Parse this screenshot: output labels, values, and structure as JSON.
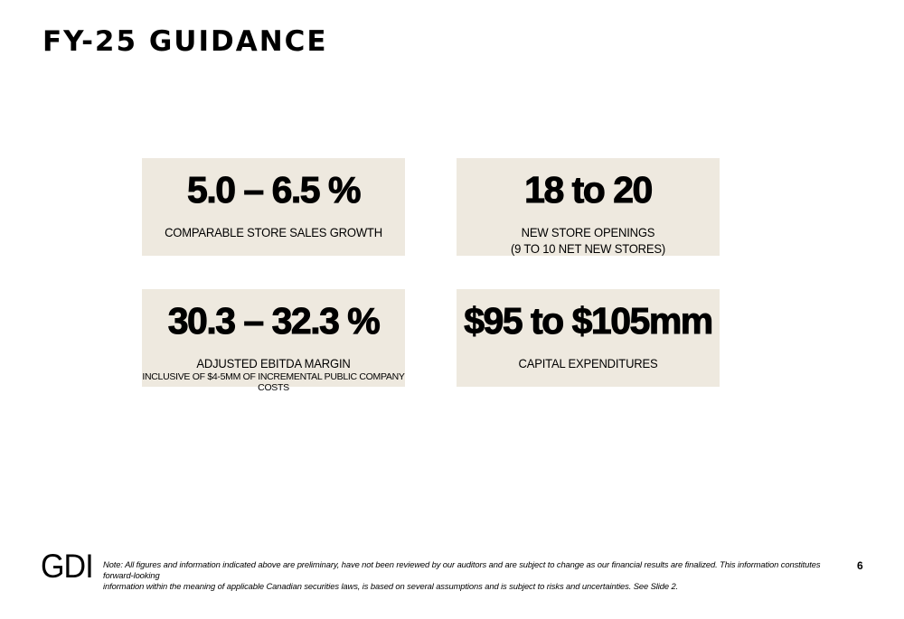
{
  "page": {
    "title": "FY-25 GUIDANCE",
    "page_number": "6"
  },
  "cards": [
    {
      "metric": "5.0 – 6.5 %",
      "label": "COMPARABLE STORE SALES GROWTH"
    },
    {
      "metric": "18 to 20",
      "label": "NEW STORE OPENINGS",
      "sublabel": "(9 TO 10 NET NEW STORES)"
    },
    {
      "metric": "30.3 – 32.3 %",
      "label": "ADJUSTED EBITDA MARGIN",
      "sublabel": "INCLUSIVE OF $4-5MM OF INCREMENTAL PUBLIC COMPANY COSTS"
    },
    {
      "metric": "$95 to $105mm",
      "label": "CAPITAL EXPENDITURES"
    }
  ],
  "footer": {
    "logo_text": "GDI",
    "note_line1": "Note: All figures and information indicated above are preliminary, have not been reviewed by our auditors and are subject to change as our financial results are finalized. This information constitutes forward-looking",
    "note_line2": "information within the meaning of applicable Canadian securities laws, is based on several assumptions and is subject to risks and uncertainties. See Slide 2."
  }
}
